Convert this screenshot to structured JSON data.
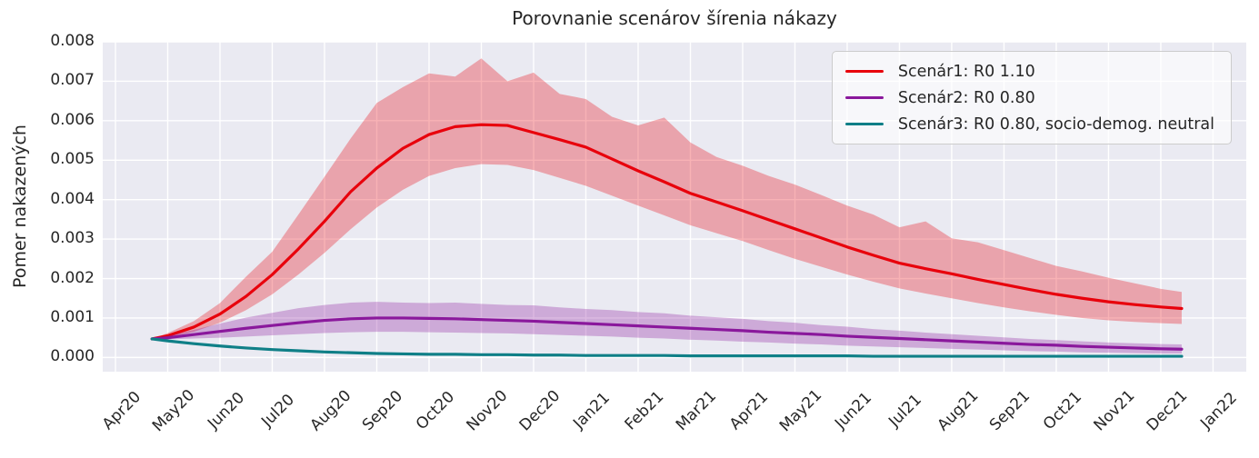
{
  "title": "Porovnanie scenárov šírenia nákazy",
  "axes": {
    "ylabel": "Pomer nakazených",
    "x_tick_labels": [
      "Apr20",
      "May20",
      "Jun20",
      "Jul20",
      "Aug20",
      "Sep20",
      "Oct20",
      "Nov20",
      "Dec20",
      "Jan21",
      "Feb21",
      "Mar21",
      "Apr21",
      "May21",
      "Jun21",
      "Jul21",
      "Aug21",
      "Sep21",
      "Oct21",
      "Nov21",
      "Dec21",
      "Jan22"
    ],
    "y_tick_labels": [
      "0.000",
      "0.001",
      "0.002",
      "0.003",
      "0.004",
      "0.005",
      "0.006",
      "0.007",
      "0.008"
    ]
  },
  "legend": {
    "items": [
      {
        "label": "Scenár1: R0 1.10",
        "color": "#e8000b"
      },
      {
        "label": "Scenár2: R0 0.80",
        "color": "#8a189c"
      },
      {
        "label": "Scenár3: R0 0.80, socio-demog. neutral",
        "color": "#0f7f87"
      }
    ]
  },
  "style": {
    "plot_bg": "#eaeaf2",
    "grid": "#ffffff",
    "text": "#262626",
    "band_alpha": 0.3,
    "line_width": 3.2
  },
  "chart_data": {
    "type": "line",
    "title": "Porovnanie scenárov šírenia nákazy",
    "xlabel": "",
    "ylabel": "Pomer nakazených",
    "x_unit": "months since Apr 2020 tick (0 = Apr20, 21 = Jan22)",
    "xlim": [
      -0.2435,
      21.6355
    ],
    "ylim": [
      -0.00036,
      0.008
    ],
    "grid": true,
    "legend_position": "upper right",
    "x": [
      0.7,
      1.0,
      1.5,
      2.0,
      2.5,
      3.0,
      3.5,
      4.0,
      4.5,
      5.0,
      5.5,
      6.0,
      6.5,
      7.0,
      7.5,
      8.0,
      8.5,
      9.0,
      9.5,
      10.0,
      10.5,
      11.0,
      11.5,
      12.0,
      12.5,
      13.0,
      13.5,
      14.0,
      14.5,
      15.0,
      15.5,
      16.0,
      16.5,
      17.0,
      17.5,
      18.0,
      18.5,
      19.0,
      19.5,
      20.0,
      20.4
    ],
    "series": [
      {
        "name": "Scenár1: R0 1.10",
        "color": "#e8000b",
        "mean": [
          0.00047,
          0.00055,
          0.00077,
          0.0011,
          0.00155,
          0.0021,
          0.00275,
          0.00345,
          0.0042,
          0.0048,
          0.0053,
          0.00565,
          0.00585,
          0.0059,
          0.00588,
          0.0057,
          0.00552,
          0.00533,
          0.00503,
          0.00473,
          0.00445,
          0.00416,
          0.00394,
          0.00372,
          0.00349,
          0.00326,
          0.00303,
          0.0028,
          0.00259,
          0.00239,
          0.00225,
          0.00212,
          0.00198,
          0.00185,
          0.00172,
          0.0016,
          0.0015,
          0.00141,
          0.00134,
          0.00128,
          0.00124
        ],
        "lo": [
          0.00047,
          0.0005,
          0.00065,
          0.00088,
          0.0012,
          0.0016,
          0.0021,
          0.00265,
          0.00325,
          0.0038,
          0.00425,
          0.0046,
          0.0048,
          0.0049,
          0.00488,
          0.00475,
          0.00455,
          0.00435,
          0.0041,
          0.00385,
          0.0036,
          0.00335,
          0.00315,
          0.00295,
          0.00272,
          0.0025,
          0.0023,
          0.0021,
          0.00192,
          0.00175,
          0.00162,
          0.0015,
          0.00138,
          0.00127,
          0.00117,
          0.00108,
          0.001,
          0.00094,
          0.0009,
          0.00087,
          0.00085
        ],
        "hi": [
          0.00047,
          0.00062,
          0.00092,
          0.00138,
          0.00205,
          0.00268,
          0.00362,
          0.00458,
          0.00555,
          0.00645,
          0.00685,
          0.0072,
          0.00712,
          0.00758,
          0.007,
          0.00722,
          0.00668,
          0.00655,
          0.0061,
          0.00588,
          0.00608,
          0.00545,
          0.00508,
          0.00486,
          0.0046,
          0.00438,
          0.00412,
          0.00385,
          0.00362,
          0.0033,
          0.00345,
          0.00302,
          0.00292,
          0.00272,
          0.00252,
          0.00232,
          0.00218,
          0.00202,
          0.00188,
          0.00174,
          0.00166
        ]
      },
      {
        "name": "Scenár2: R0 0.80",
        "color": "#8a189c",
        "mean": [
          0.00047,
          0.0005,
          0.00058,
          0.00066,
          0.00074,
          0.00081,
          0.00088,
          0.00094,
          0.00098,
          0.001,
          0.001,
          0.00099,
          0.00098,
          0.00096,
          0.00094,
          0.00092,
          0.00089,
          0.00086,
          0.00083,
          0.0008,
          0.00077,
          0.00074,
          0.00071,
          0.00068,
          0.00064,
          0.00061,
          0.00058,
          0.00054,
          0.00051,
          0.00048,
          0.00045,
          0.00042,
          0.00039,
          0.00036,
          0.00033,
          0.00031,
          0.00028,
          0.00026,
          0.00024,
          0.00022,
          0.00021
        ],
        "lo": [
          0.00047,
          0.00046,
          0.00048,
          0.0005,
          0.00053,
          0.00056,
          0.00059,
          0.00062,
          0.00064,
          0.00065,
          0.00065,
          0.00064,
          0.00063,
          0.00062,
          0.00061,
          0.00059,
          0.00057,
          0.00055,
          0.00053,
          0.0005,
          0.00048,
          0.00045,
          0.00043,
          0.0004,
          0.00038,
          0.00035,
          0.00033,
          0.0003,
          0.00028,
          0.00026,
          0.00024,
          0.00022,
          0.0002,
          0.00018,
          0.00016,
          0.00015,
          0.00013,
          0.00012,
          0.00011,
          0.0001,
          0.0001
        ],
        "hi": [
          0.00047,
          0.00055,
          0.0007,
          0.00086,
          0.00101,
          0.00113,
          0.00125,
          0.00133,
          0.00139,
          0.00141,
          0.00139,
          0.00138,
          0.00139,
          0.00136,
          0.00133,
          0.00132,
          0.00127,
          0.00123,
          0.0012,
          0.00115,
          0.00112,
          0.00106,
          0.00102,
          0.00098,
          0.00092,
          0.00088,
          0.00082,
          0.00078,
          0.00072,
          0.00068,
          0.00063,
          0.00059,
          0.00055,
          0.00051,
          0.00047,
          0.00044,
          0.00041,
          0.00038,
          0.00036,
          0.00034,
          0.00033
        ]
      },
      {
        "name": "Scenár3: R0 0.80, socio-demog. neutral",
        "color": "#0f7f87",
        "mean": [
          0.00047,
          0.00042,
          0.00035,
          0.00029,
          0.00024,
          0.0002,
          0.00017,
          0.00014,
          0.00012,
          0.0001,
          9e-05,
          8e-05,
          8e-05,
          7e-05,
          7e-05,
          6e-05,
          6e-05,
          5e-05,
          5e-05,
          5e-05,
          5e-05,
          4e-05,
          4e-05,
          4e-05,
          4e-05,
          4e-05,
          4e-05,
          4e-05,
          3e-05,
          3e-05,
          3e-05,
          3e-05,
          3e-05,
          3e-05,
          3e-05,
          3e-05,
          3e-05,
          3e-05,
          3e-05,
          3e-05,
          3e-05
        ],
        "lo": null,
        "hi": null
      }
    ]
  }
}
